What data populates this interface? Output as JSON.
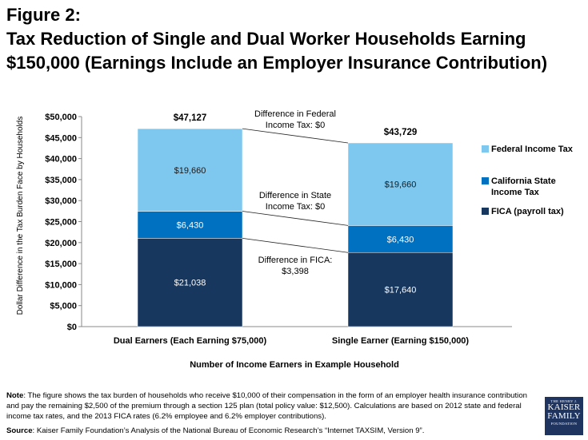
{
  "figure": {
    "label": "Figure 2:",
    "title_line1": "Tax Reduction of Single and Dual Worker Households Earning",
    "title_line2": "$150,000 (Earnings Include an Employer Insurance Contribution)"
  },
  "chart_data": {
    "type": "bar",
    "stacked": true,
    "categories": [
      "Dual Earners (Each Earning $75,000)",
      "Single Earner (Earning $150,000)"
    ],
    "series": [
      {
        "name": "FICA (payroll tax)",
        "values": [
          21038,
          17640
        ],
        "labels": [
          "$21,038",
          "$17,640"
        ],
        "color": "#17375e",
        "label_color": "#ffffff"
      },
      {
        "name": "California State Income Tax",
        "values": [
          6430,
          6430
        ],
        "labels": [
          "$6,430",
          "$6,430"
        ],
        "color": "#0070c0",
        "label_color": "#ffffff"
      },
      {
        "name": "Federal Income Tax",
        "values": [
          19660,
          19660
        ],
        "labels": [
          "$19,660",
          "$19,660"
        ],
        "color": "#7ec8f0",
        "label_color": "#1a1a1a"
      }
    ],
    "totals": [
      "$47,127",
      "$43,729"
    ],
    "xlabel": "Number of Income Earners in Example Household",
    "ylabel": "Dollar Difference in the Tax Burden Face by Households",
    "ylim": [
      0,
      50000
    ],
    "yticks": [
      0,
      5000,
      10000,
      15000,
      20000,
      25000,
      30000,
      35000,
      40000,
      45000,
      50000
    ],
    "ytick_labels": [
      "$0",
      "$5,000",
      "$10,000",
      "$15,000",
      "$20,000",
      "$25,000",
      "$30,000",
      "$35,000",
      "$40,000",
      "$45,000",
      "$50,000"
    ],
    "legend_position": "right",
    "legend_order": [
      "Federal Income Tax",
      "California State Income Tax",
      "FICA (payroll tax)"
    ],
    "annotations": [
      {
        "id": "federal",
        "lines": [
          "Difference in Federal",
          "Income Tax: $0"
        ]
      },
      {
        "id": "state",
        "lines": [
          "Difference in State",
          "Income Tax: $0"
        ]
      },
      {
        "id": "fica",
        "lines": [
          "Difference in FICA:",
          "$3,398"
        ]
      }
    ],
    "grid": false
  },
  "note": {
    "label": "Note",
    "text": ": The figure shows the tax burden of households who receive $10,000 of their compensation in the form of an employer health insurance contribution and pay the remaining $2,500 of the premium through a section 125 plan (total policy value: $12,500). Calculations are based on 2012 state and federal income tax rates, and the 2013 FICA rates (6.2% employee and 6.2% employer contributions)."
  },
  "source": {
    "label": "Source",
    "text": ":  Kaiser Family Foundation’s Analysis of the National Bureau of Economic Research’s “Internet TAXSIM, Version 9”."
  },
  "logo": {
    "line1": "THE HENRY J.",
    "line2": "KAISER",
    "line3": "FAMILY",
    "line4": "FOUNDATION"
  }
}
